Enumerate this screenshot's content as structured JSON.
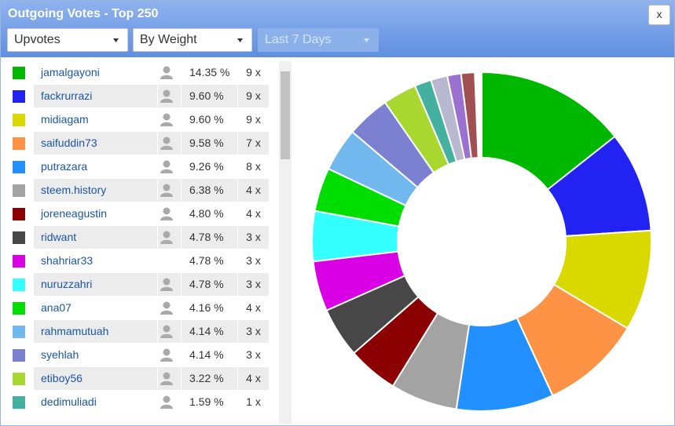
{
  "header": {
    "title": "Outgoing Votes - Top 250",
    "close": "x"
  },
  "controls": {
    "type": "Upvotes",
    "sort": "By Weight",
    "period": "Last 7 Days"
  },
  "table": {
    "rows": [
      {
        "name": "jamalgayoni",
        "percent": "14.35 %",
        "votes": "9 x",
        "has_icon": true
      },
      {
        "name": "fackrurrazi",
        "percent": "9.60 %",
        "votes": "9 x",
        "has_icon": true
      },
      {
        "name": "midiagam",
        "percent": "9.60 %",
        "votes": "9 x",
        "has_icon": true
      },
      {
        "name": "saifuddin73",
        "percent": "9.58 %",
        "votes": "7 x",
        "has_icon": true
      },
      {
        "name": "putrazara",
        "percent": "9.26 %",
        "votes": "8 x",
        "has_icon": true
      },
      {
        "name": "steem.history",
        "percent": "6.38 %",
        "votes": "4 x",
        "has_icon": true
      },
      {
        "name": "joreneagustin",
        "percent": "4.80 %",
        "votes": "4 x",
        "has_icon": true
      },
      {
        "name": "ridwant",
        "percent": "4.78 %",
        "votes": "3 x",
        "has_icon": true
      },
      {
        "name": "shahriar33",
        "percent": "4.78 %",
        "votes": "3 x",
        "has_icon": false
      },
      {
        "name": "nuruzzahri",
        "percent": "4.78 %",
        "votes": "3 x",
        "has_icon": true
      },
      {
        "name": "ana07",
        "percent": "4.16 %",
        "votes": "4 x",
        "has_icon": true
      },
      {
        "name": "rahmamutuah",
        "percent": "4.14 %",
        "votes": "3 x",
        "has_icon": true
      },
      {
        "name": "syehlah",
        "percent": "4.14 %",
        "votes": "3 x",
        "has_icon": true
      },
      {
        "name": "etiboy56",
        "percent": "3.22 %",
        "votes": "4 x",
        "has_icon": true
      },
      {
        "name": "dedimuliadi",
        "percent": "1.59 %",
        "votes": "1 x",
        "has_icon": true
      }
    ]
  },
  "chart_data": {
    "type": "donut",
    "values": [
      14.35,
      9.6,
      9.6,
      9.58,
      9.26,
      6.38,
      4.8,
      4.78,
      4.78,
      4.78,
      4.16,
      4.14,
      4.14,
      3.22,
      1.59,
      1.59,
      1.3,
      1.3
    ],
    "colors": [
      "#00b800",
      "#2222f2",
      "#d9d900",
      "#ff9345",
      "#2291ff",
      "#a3a3a3",
      "#8b0000",
      "#474747",
      "#d900e6",
      "#33ffff",
      "#00dd00",
      "#70b8ee",
      "#7b80d0",
      "#a8d830",
      "#44b0a0",
      "#b8b8d0",
      "#9a70d0",
      "#a05050"
    ]
  }
}
